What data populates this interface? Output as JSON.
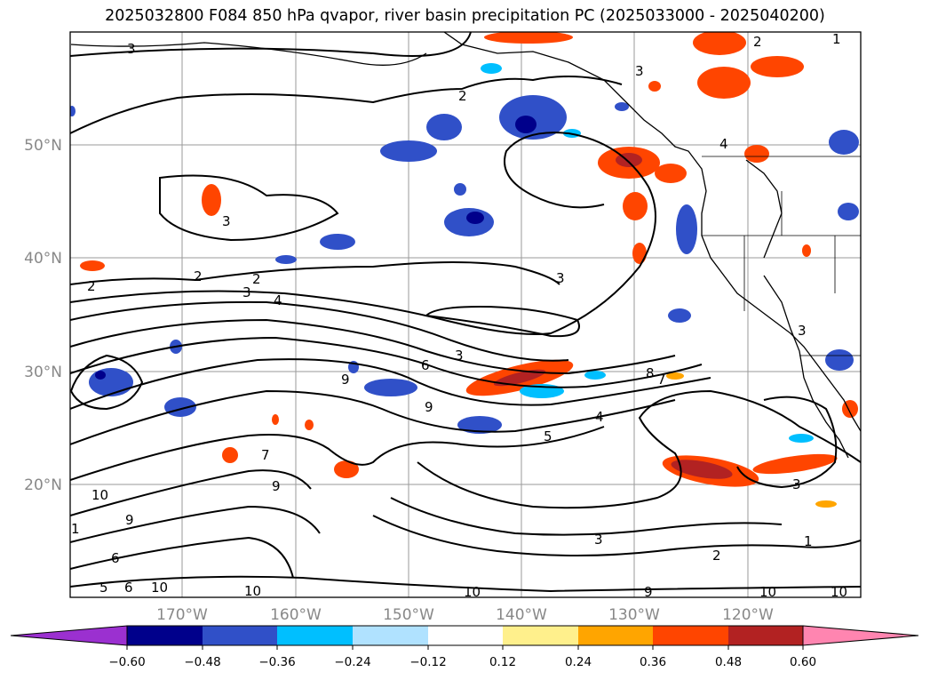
{
  "title": "2025032800 F084 850 hPa qvapor, river basin precipitation PC (2025033000 - 2025040200)",
  "map": {
    "lat_labels": [
      "50°N",
      "40°N",
      "30°N",
      "20°N"
    ],
    "lon_labels": [
      "170°W",
      "160°W",
      "150°W",
      "140°W",
      "130°W",
      "120°W"
    ],
    "contour_labels": [
      "3",
      "2",
      "2",
      "2",
      "2",
      "3",
      "4",
      "3",
      "6",
      "3",
      "9",
      "9",
      "8",
      "7",
      "4",
      "5",
      "7",
      "9",
      "10",
      "9",
      "6",
      "1",
      "5",
      "6",
      "10",
      "10",
      "10",
      "9",
      "10",
      "3",
      "2",
      "1",
      "10",
      "3",
      "3",
      "4",
      "3",
      "1",
      "3",
      "2"
    ]
  },
  "colorbar": {
    "ticks": [
      "−0.60",
      "−0.48",
      "−0.36",
      "−0.24",
      "−0.12",
      "0.12",
      "0.24",
      "0.36",
      "0.48",
      "0.60"
    ],
    "colors": [
      "#9b30d0",
      "#00008b",
      "#3050c8",
      "#00bfff",
      "#b0e2ff",
      "#ffffff",
      "#fff08c",
      "#ffa500",
      "#ff4500",
      "#b22222",
      "#ff85b0"
    ],
    "extend": "both"
  }
}
